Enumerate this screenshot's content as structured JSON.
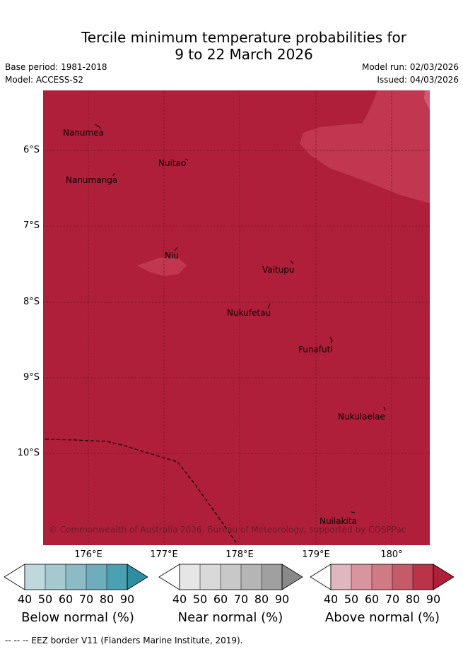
{
  "header": {
    "title_line1": "Tercile minimum temperature probabilities for",
    "title_line2": "9 to 22 March 2026",
    "base_period": "Base period: 1981-2018",
    "model": "Model: ACCESS-S2",
    "model_run": "Model run: 02/03/2026",
    "issued": "Issued: 04/03/2026"
  },
  "map": {
    "latitude_labels": [
      "6°S",
      "7°S",
      "8°S",
      "9°S",
      "10°S"
    ],
    "longitude_labels": [
      "176°E",
      "177°E",
      "178°E",
      "179°E",
      "180°"
    ],
    "places": [
      {
        "name": "Nanumea"
      },
      {
        "name": "Nuitao"
      },
      {
        "name": "Nanumanga"
      },
      {
        "name": "Niu"
      },
      {
        "name": "Vaitupu"
      },
      {
        "name": "Nukufetau"
      },
      {
        "name": "Funafuti"
      },
      {
        "name": "Nukulaelae"
      },
      {
        "name": "Nuilakita"
      }
    ],
    "copyright": "© Commonwealth of Australia 2026, Bureau of Meteorology, supported by COSPPac",
    "colors": {
      "above_normal_90": "#b01f3a",
      "above_normal_80": "#c0374f",
      "grid": "#6d1022",
      "eez": "#000000"
    }
  },
  "colorbars": [
    {
      "title": "Below normal (%)",
      "ticks": [
        "40",
        "50",
        "60",
        "70",
        "80",
        "90"
      ],
      "colors": [
        "#ffffff",
        "#bed8dc",
        "#a6c9cf",
        "#8cbac5",
        "#6eaebc",
        "#4aa1b1",
        "#2e8fa3"
      ]
    },
    {
      "title": "Near normal (%)",
      "ticks": [
        "40",
        "50",
        "60",
        "70",
        "80",
        "90"
      ],
      "colors": [
        "#ffffff",
        "#e6e6e6",
        "#d9d9d9",
        "#c8c8c8",
        "#b5b5b5",
        "#a0a0a0",
        "#898989"
      ]
    },
    {
      "title": "Above normal (%)",
      "ticks": [
        "40",
        "50",
        "60",
        "70",
        "80",
        "90"
      ],
      "colors": [
        "#ffffff",
        "#e1b7bf",
        "#d8949f",
        "#d07a84",
        "#c55a68",
        "#bc3349",
        "#b01f3a"
      ]
    }
  ],
  "footer": {
    "eez_note": "--  --  -- EEZ border V11 (Flanders Marine Institute, 2019)."
  }
}
